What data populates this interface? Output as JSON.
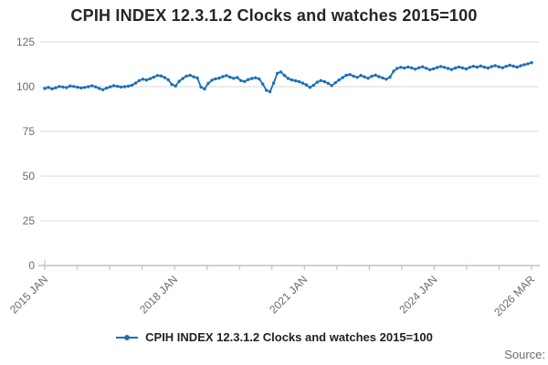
{
  "title": "CPIH INDEX 12.3.1.2 Clocks and watches 2015=100",
  "source_label": "Source:",
  "legend": {
    "label": "CPIH INDEX 12.3.1.2 Clocks and watches 2015=100",
    "marker_icon": "line-dot-icon"
  },
  "colors": {
    "line": "#1d70b8",
    "grid": "#d9d9d9",
    "axis": "#b9c3d8",
    "muted_text": "#6b6b6b",
    "title_text": "#262626"
  },
  "chart_data": {
    "type": "line",
    "title": "CPIH INDEX 12.3.1.2 Clocks and watches 2015=100",
    "xlabel": "",
    "ylabel": "",
    "ylim": [
      0,
      125
    ],
    "y_ticks": [
      0,
      25,
      50,
      75,
      100,
      125
    ],
    "grid": "horizontal",
    "legend_position": "bottom",
    "x_start": "2015 JAN",
    "x_end": "2026 MAR",
    "x_minor_tick_count": 16,
    "x_tick_labels": [
      "2015 JAN",
      "2018 JAN",
      "2021 JAN",
      "2024 JAN",
      "2026 MAR"
    ],
    "x_tick_label_positions": [
      0,
      4,
      8,
      12,
      15
    ],
    "series": [
      {
        "name": "CPIH INDEX 12.3.1.2 Clocks and watches 2015=100",
        "frequency": "monthly",
        "values": [
          99.0,
          99.6,
          98.8,
          99.4,
          100.1,
          99.8,
          99.5,
          100.4,
          100.1,
          99.7,
          99.3,
          99.6,
          100.0,
          100.5,
          99.9,
          99.0,
          98.3,
          99.2,
          99.9,
          100.5,
          100.2,
          99.8,
          100.0,
          100.3,
          100.8,
          102.0,
          103.4,
          104.2,
          103.7,
          104.5,
          105.3,
          106.2,
          106.0,
          105.1,
          103.9,
          101.2,
          100.4,
          103.0,
          104.6,
          105.9,
          106.4,
          105.5,
          104.9,
          99.8,
          98.7,
          101.9,
          103.6,
          104.4,
          104.8,
          105.6,
          106.2,
          105.3,
          104.7,
          105.1,
          103.4,
          102.9,
          104.0,
          104.6,
          105.0,
          104.4,
          101.5,
          98.0,
          97.2,
          102.0,
          107.5,
          108.2,
          106.3,
          104.6,
          103.8,
          103.3,
          102.8,
          102.0,
          101.0,
          99.6,
          100.8,
          102.5,
          103.4,
          102.8,
          101.9,
          100.6,
          102.2,
          103.8,
          105.1,
          106.4,
          106.8,
          105.9,
          105.2,
          106.3,
          105.5,
          104.7,
          105.8,
          106.5,
          105.6,
          104.9,
          104.2,
          105.3,
          108.6,
          110.2,
          110.8,
          110.4,
          111.0,
          110.5,
          109.8,
          110.6,
          111.1,
          110.3,
          109.5,
          110.0,
          110.7,
          111.3,
          110.8,
          110.2,
          109.6,
          110.4,
          111.0,
          110.5,
          109.9,
          110.8,
          111.4,
          110.9,
          111.6,
          110.9,
          110.4,
          111.2,
          111.8,
          111.1,
          110.6,
          111.4,
          112.0,
          111.5,
          110.9,
          111.7,
          112.3,
          112.8,
          113.4
        ]
      }
    ]
  }
}
